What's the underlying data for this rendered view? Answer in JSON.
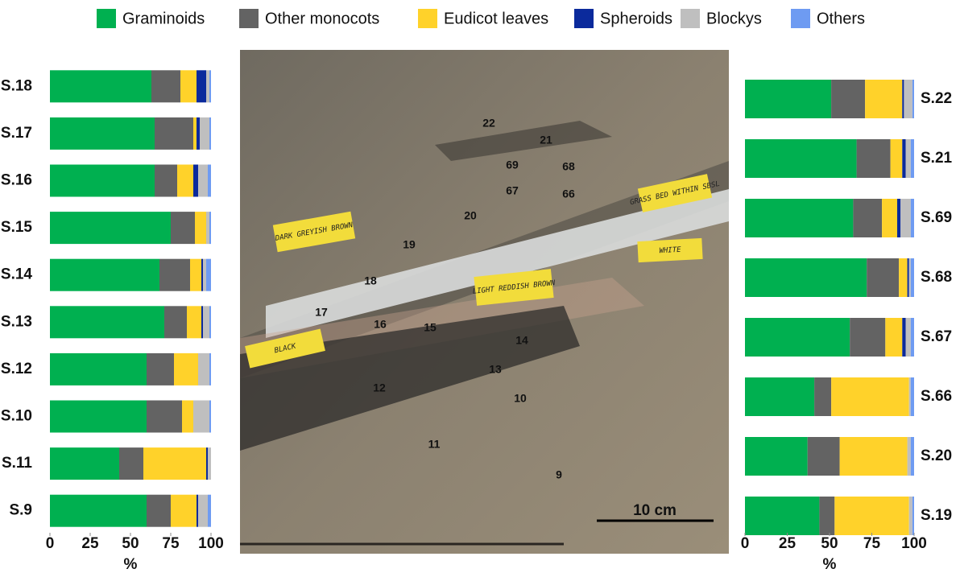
{
  "chart_data": [
    {
      "type": "bar",
      "orientation": "horizontal",
      "stacked": true,
      "categories": [
        "S.18",
        "S.17",
        "S.16",
        "S.15",
        "S.14",
        "S.13",
        "S.12",
        "S.10",
        "S.11",
        "S.9"
      ],
      "series": [
        {
          "name": "Graminoids",
          "color": "#00b050",
          "values": [
            63,
            65,
            65,
            75,
            68,
            71,
            60,
            60,
            43,
            60
          ]
        },
        {
          "name": "Other monocots",
          "color": "#636363",
          "values": [
            18,
            24,
            14,
            15,
            19,
            14,
            17,
            22,
            15,
            15
          ]
        },
        {
          "name": "Eudicot leaves",
          "color": "#ffd22a",
          "values": [
            10,
            2,
            10,
            7,
            7,
            9,
            15,
            7,
            39,
            16
          ]
        },
        {
          "name": "Spheroids",
          "color": "#0b2a9c",
          "values": [
            6,
            2,
            3,
            0,
            1,
            1,
            0,
            0,
            1,
            1
          ]
        },
        {
          "name": "Blockys",
          "color": "#bfbfbf",
          "values": [
            2,
            6,
            6,
            2,
            2,
            4,
            7,
            10,
            2,
            6
          ]
        },
        {
          "name": "Others",
          "color": "#6e9bf2",
          "values": [
            1,
            1,
            2,
            1,
            3,
            1,
            1,
            1,
            0,
            2
          ]
        }
      ],
      "xlim": [
        0,
        100
      ],
      "xticks": [
        0,
        25,
        50,
        75,
        100
      ],
      "xlabel": "%",
      "grid": false,
      "legend": "top"
    },
    {
      "type": "bar",
      "orientation": "horizontal",
      "stacked": true,
      "categories": [
        "S.22",
        "S.21",
        "S.69",
        "S.68",
        "S.67",
        "S.66",
        "S.20",
        "S.19"
      ],
      "series": [
        {
          "color": "#00b050",
          "values": [
            51,
            66,
            64,
            72,
            62,
            41,
            37,
            44
          ]
        },
        {
          "color": "#636363",
          "values": [
            20,
            20,
            17,
            19,
            21,
            10,
            19,
            9
          ]
        },
        {
          "color": "#ffd22a",
          "values": [
            22,
            7,
            9,
            5,
            10,
            46,
            40,
            44
          ]
        },
        {
          "color": "#0b2a9c",
          "values": [
            1,
            2,
            2,
            1,
            2,
            0,
            0,
            0
          ]
        },
        {
          "color": "#bfbfbf",
          "values": [
            5,
            3,
            6,
            1,
            3,
            1,
            2,
            2
          ]
        },
        {
          "color": "#6e9bf2",
          "values": [
            1,
            2,
            2,
            2,
            2,
            2,
            2,
            1
          ]
        }
      ],
      "xlim": [
        0,
        100
      ],
      "xticks": [
        0,
        25,
        50,
        75,
        100
      ],
      "xlabel": "%",
      "grid": false
    }
  ],
  "photo": {
    "sample_numbers": [
      "22",
      "21",
      "69",
      "68",
      "67",
      "66",
      "20",
      "19",
      "18",
      "17",
      "16",
      "15",
      "14",
      "13",
      "12",
      "10",
      "11",
      "9"
    ],
    "cards": [
      "DARK GREYISH BROWN",
      "LIGHT REDDISH BROWN",
      "BLACK",
      "WHITE",
      "GRASS BED WITHIN SBSL"
    ],
    "scale_bar": "10 cm"
  }
}
